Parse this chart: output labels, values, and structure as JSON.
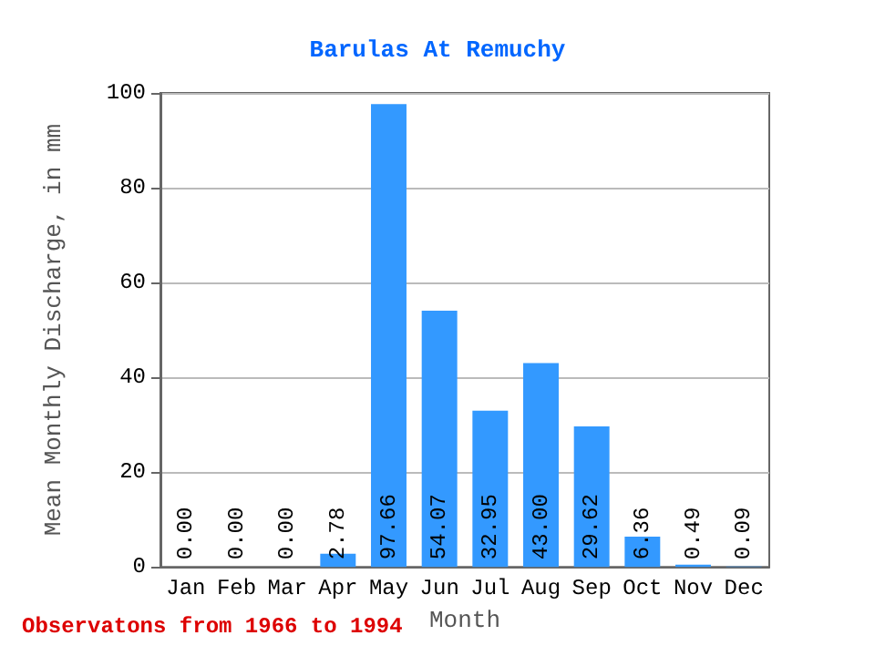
{
  "chart_data": {
    "type": "bar",
    "title": "Barulas At Remuchy",
    "xlabel": "Month",
    "ylabel": "Mean Monthly Discharge, in mm",
    "categories": [
      "Jan",
      "Feb",
      "Mar",
      "Apr",
      "May",
      "Jun",
      "Jul",
      "Aug",
      "Sep",
      "Oct",
      "Nov",
      "Dec"
    ],
    "values": [
      0.0,
      0.0,
      0.0,
      2.78,
      97.66,
      54.07,
      32.95,
      43.0,
      29.62,
      6.36,
      0.49,
      0.09
    ],
    "value_labels": [
      "0.00",
      "0.00",
      "0.00",
      "2.78",
      "97.66",
      "54.07",
      "32.95",
      "43.00",
      "29.62",
      "6.36",
      "0.49",
      "0.09"
    ],
    "color": "#3399ff",
    "ylim": [
      0,
      100
    ],
    "yticks": [
      0,
      20,
      40,
      60,
      80,
      100
    ],
    "grid": "y",
    "annotations": [
      "Observatons from 1966 to 1994"
    ]
  }
}
